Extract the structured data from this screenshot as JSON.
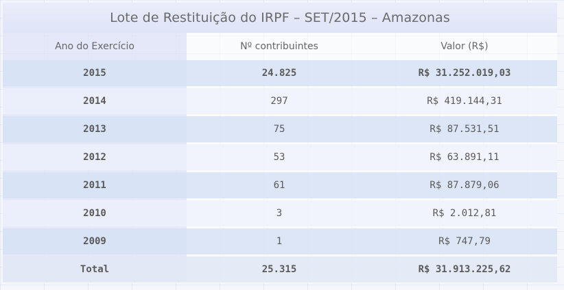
{
  "chart_data": {
    "type": "table",
    "title": "Lote de Restituição do IRPF – SET/2015 – Amazonas",
    "columns": [
      "Ano do Exercício",
      "Nº contribuintes",
      "Valor (R$)"
    ],
    "rows": [
      {
        "year": "2015",
        "contributors": "24.825",
        "value": "R$ 31.252.019,03"
      },
      {
        "year": "2014",
        "contributors": "297",
        "value": "R$ 419.144,31"
      },
      {
        "year": "2013",
        "contributors": "75",
        "value": "R$ 87.531,51"
      },
      {
        "year": "2012",
        "contributors": "53",
        "value": "R$ 63.891,11"
      },
      {
        "year": "2011",
        "contributors": "61",
        "value": "R$ 87.879,06"
      },
      {
        "year": "2010",
        "contributors": "3",
        "value": "R$ 2.012,81"
      },
      {
        "year": "2009",
        "contributors": "1",
        "value": "R$ 747,79"
      }
    ],
    "total": {
      "label": "Total",
      "contributors": "25.315",
      "value": "R$ 31.913.225,62"
    }
  }
}
